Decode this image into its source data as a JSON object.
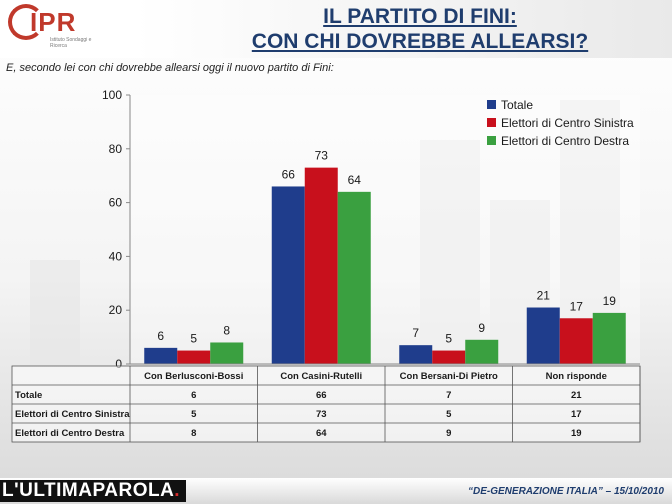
{
  "header": {
    "title_line1": "IL PARTITO DI FINI:",
    "title_line2": "CON CHI DOVREBBE ALLEARSI?",
    "logo_text": "IPR",
    "logo_sub": "Istituto Sondaggi e Ricerca"
  },
  "question": "E, secondo lei con chi dovrebbe allearsi oggi il nuovo partito di Fini:",
  "chart_data": {
    "type": "bar",
    "categories": [
      "Con Berlusconi-Bossi",
      "Con Casini-Rutelli",
      "Con Bersani-Di Pietro",
      "Non risponde"
    ],
    "series": [
      {
        "name": "Totale",
        "values": [
          6,
          66,
          7,
          21
        ],
        "color": "#1f3d8c"
      },
      {
        "name": "Elettori di Centro Sinistra",
        "values": [
          5,
          73,
          5,
          17
        ],
        "color": "#c8101c"
      },
      {
        "name": "Elettori di Centro Destra",
        "values": [
          8,
          64,
          9,
          19
        ],
        "color": "#3aa040"
      }
    ],
    "ylim": [
      0,
      100
    ],
    "yticks": [
      0,
      20,
      40,
      60,
      80,
      100
    ],
    "legend_position": "top-right",
    "data_table": true
  },
  "footer": {
    "brand_part1": "L'ULTIMA",
    "brand_part2": "PAROLA",
    "brand_dot": ".",
    "note": "“DE-GENERAZIONE ITALIA” – 15/10/2010"
  }
}
